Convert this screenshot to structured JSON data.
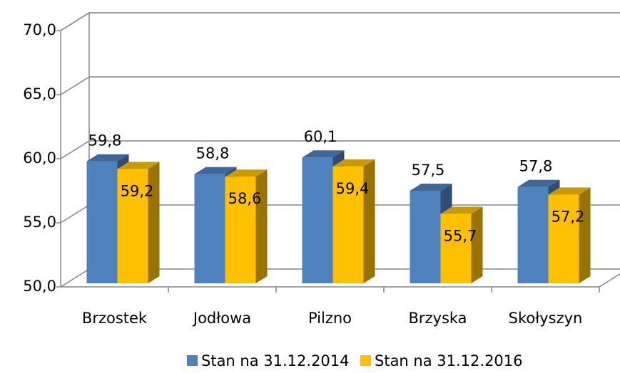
{
  "chart_data": {
    "type": "bar3d",
    "categories": [
      "Brzostek",
      "Jodłowa",
      "Pilzno",
      "Brzyska",
      "Skołyszyn"
    ],
    "series": [
      {
        "name": "Stan na 31.12.2014",
        "color": "#4f81bd",
        "values": [
          59.8,
          58.8,
          60.1,
          57.5,
          57.8
        ],
        "value_labels": [
          "59,8",
          "58,8",
          "60,1",
          "57,5",
          "57,8"
        ]
      },
      {
        "name": "Stan na 31.12.2016",
        "color": "#ffc000",
        "values": [
          59.2,
          58.6,
          59.4,
          55.7,
          57.2
        ],
        "value_labels": [
          "59,2",
          "58,6",
          "59,4",
          "55,7",
          "57,2"
        ]
      }
    ],
    "ylim": [
      50,
      70
    ],
    "yticks": [
      {
        "value": 50,
        "label": "50,0"
      },
      {
        "value": 55,
        "label": "55,0"
      },
      {
        "value": 60,
        "label": "60,0"
      },
      {
        "value": 65,
        "label": "65,0"
      },
      {
        "value": 70,
        "label": "70,0"
      }
    ],
    "grid": true,
    "legend": "bottom"
  }
}
